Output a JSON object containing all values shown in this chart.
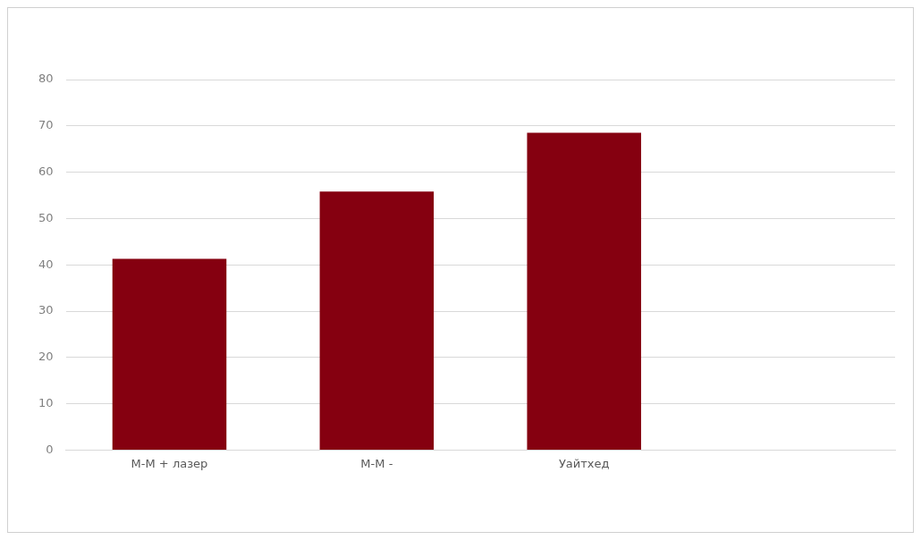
{
  "chart_data": {
    "type": "bar",
    "categories": [
      "М-М + лазер",
      "М-М -",
      "Уайтхед",
      null
    ],
    "values": [
      41.3,
      55.8,
      68.5,
      null
    ],
    "color": "#850010",
    "ylim": [
      0,
      80
    ],
    "yticks": [
      0,
      10,
      20,
      30,
      40,
      50,
      60,
      70,
      80
    ],
    "grid": "y",
    "legend": false
  }
}
